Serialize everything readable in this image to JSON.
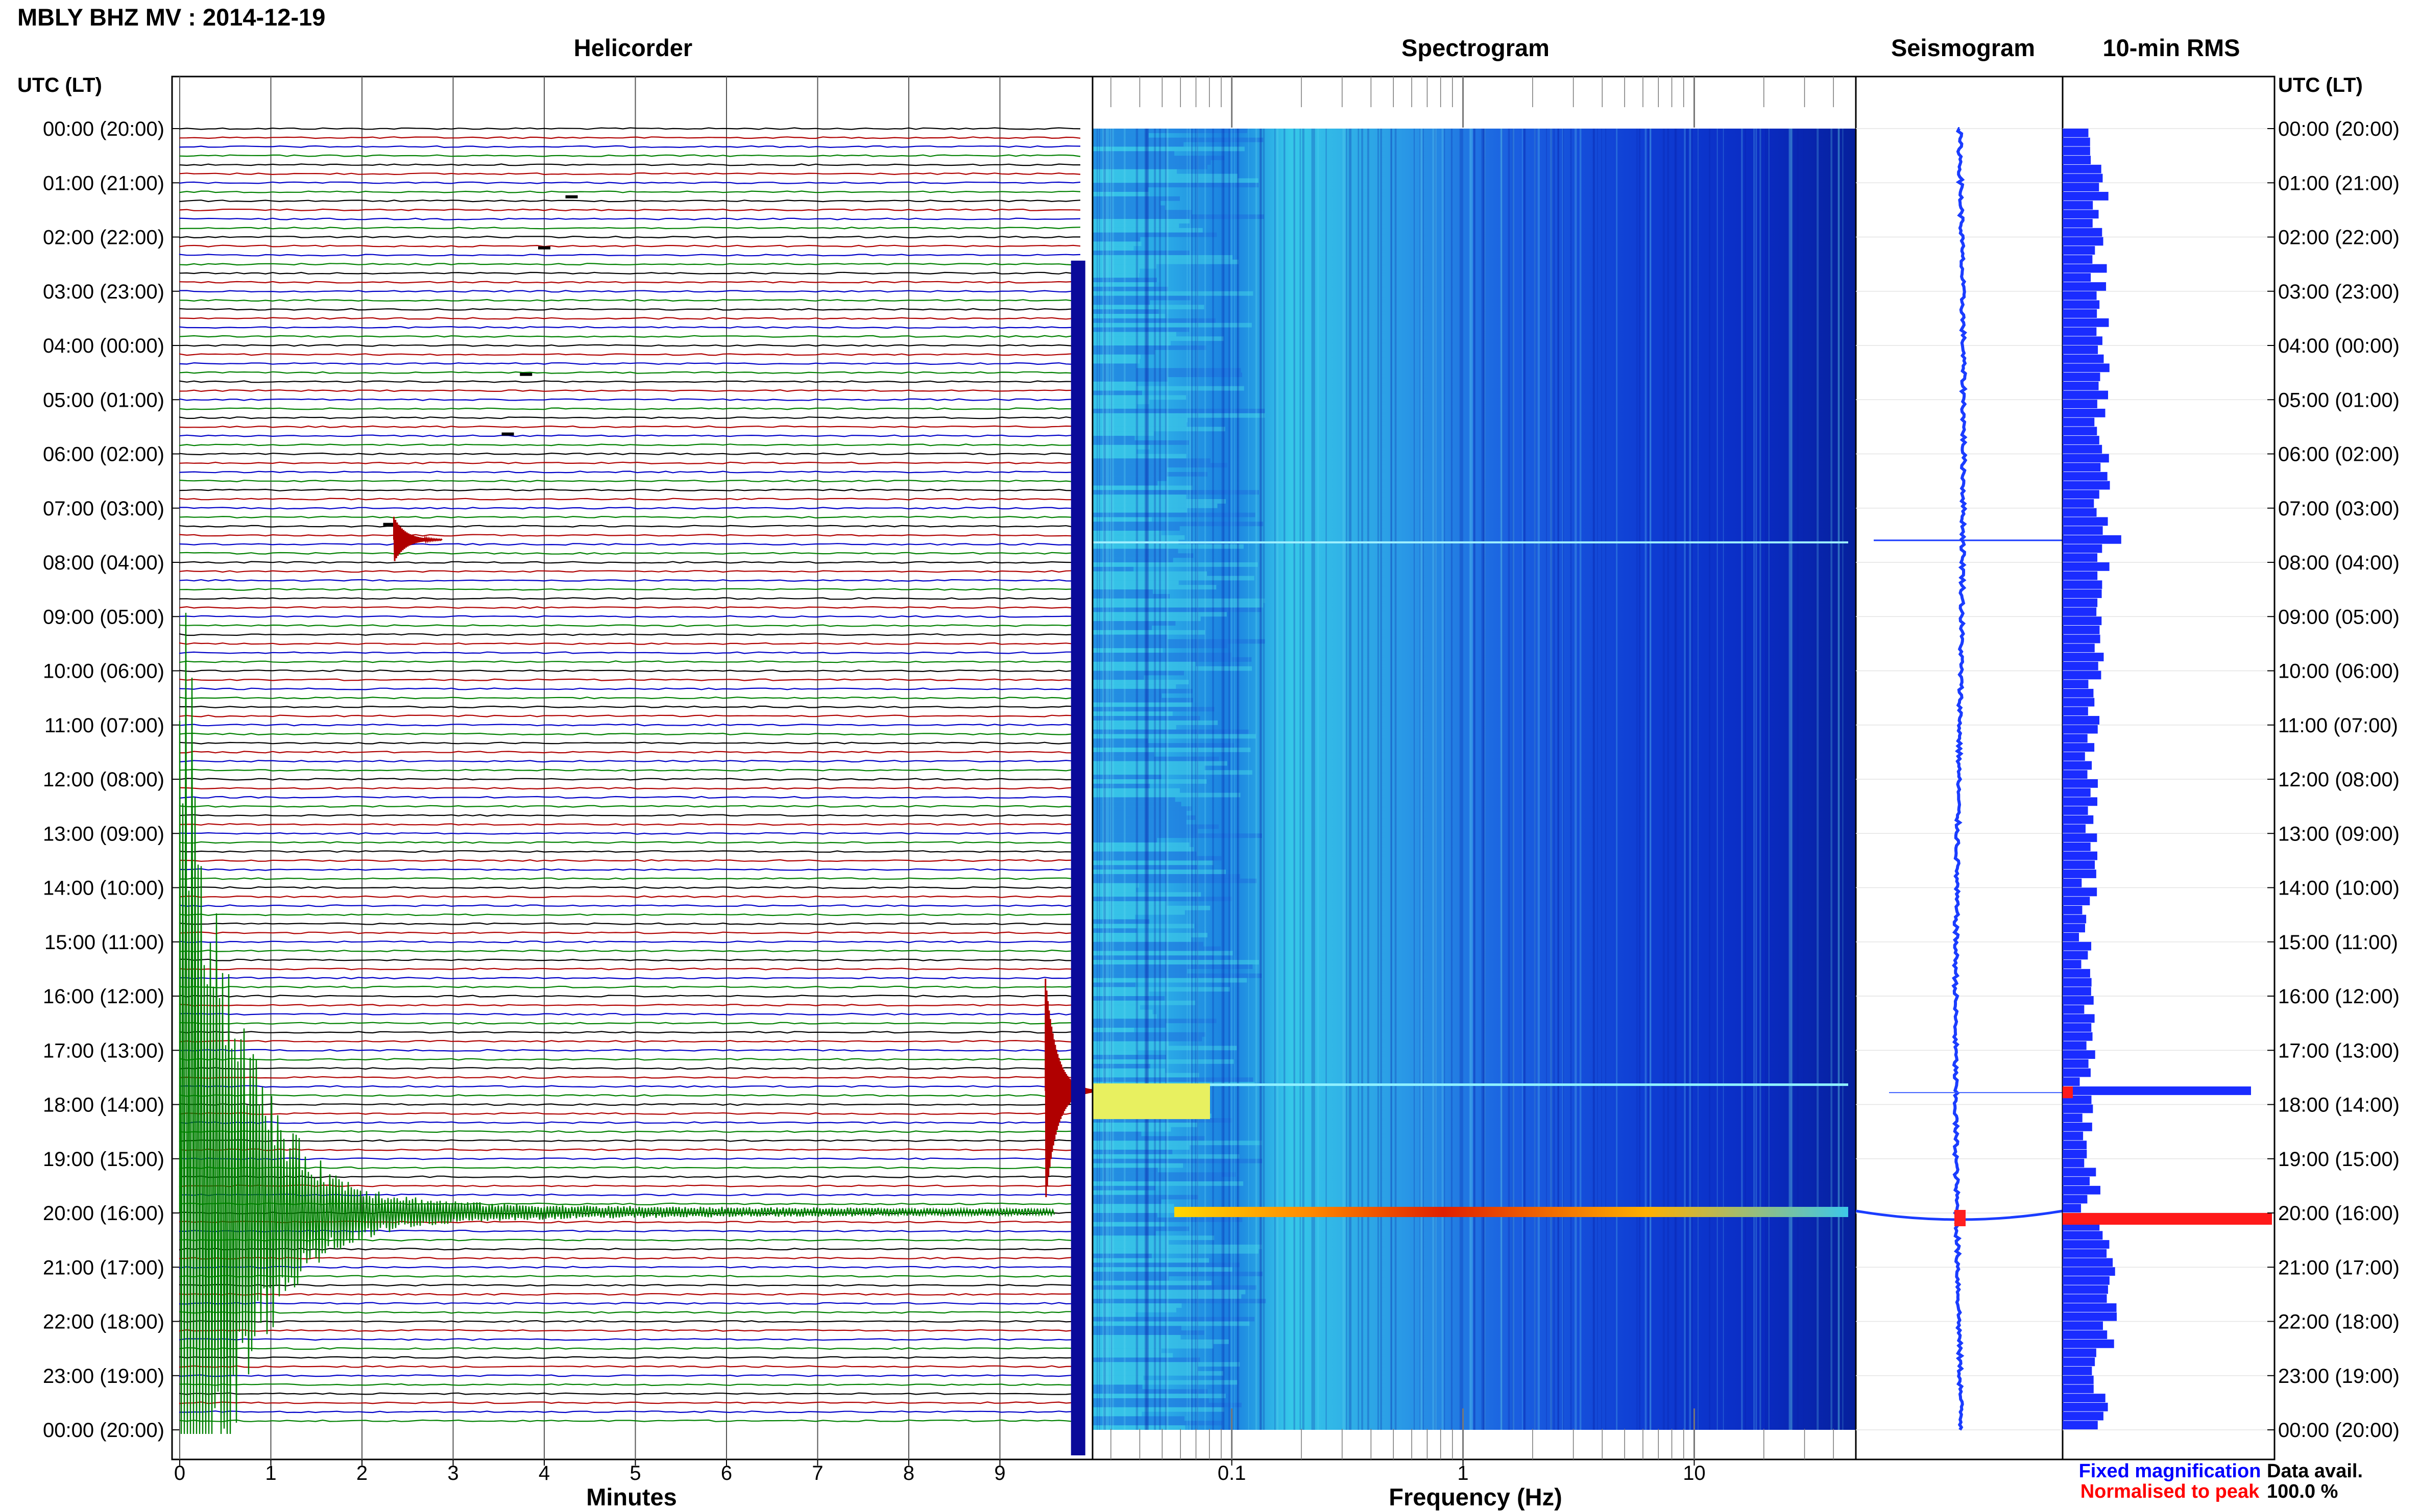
{
  "title": "MBLY BHZ MV : 2014-12-19",
  "time_axis_label": "UTC (LT)",
  "time_axis_label_right": "UTC (LT)",
  "panels": {
    "helicorder": "Helicorder",
    "spectrogram": "Spectrogram",
    "seismogram": "Seismogram",
    "rms": "10-min RMS"
  },
  "legend": {
    "fixed": "Fixed magnification",
    "normalised": "Normalised to peak",
    "avail_label": "Data avail.",
    "avail_value": "100.0 %"
  },
  "colors": {
    "trace_cycle": [
      "#000000",
      "#b00000",
      "#0000c8",
      "#008000"
    ],
    "fixed": "#0000ff",
    "normalised": "#ff0000"
  },
  "chart_data": [
    {
      "type": "line",
      "title": "Helicorder",
      "xlabel": "Minutes",
      "xlim": [
        0,
        10
      ],
      "x_ticks": [
        "0",
        "1",
        "2",
        "3",
        "4",
        "5",
        "6",
        "7",
        "8",
        "9"
      ],
      "rows": 144,
      "row_minutes": 10,
      "y_tick_labels": [
        "00:00 (20:00)",
        "01:00 (21:00)",
        "02:00 (22:00)",
        "03:00 (23:00)",
        "04:00 (00:00)",
        "05:00 (01:00)",
        "06:00 (02:00)",
        "07:00 (03:00)",
        "08:00 (04:00)",
        "09:00 (05:00)",
        "10:00 (06:00)",
        "11:00 (07:00)",
        "12:00 (08:00)",
        "13:00 (09:00)",
        "14:00 (10:00)",
        "15:00 (11:00)",
        "16:00 (12:00)",
        "17:00 (13:00)",
        "18:00 (14:00)",
        "19:00 (15:00)",
        "20:00 (16:00)",
        "21:00 (17:00)",
        "22:00 (18:00)",
        "23:00 (19:00)",
        "00:00 (20:00)"
      ],
      "events": [
        {
          "time": "07:30",
          "minute": 2.35,
          "color": "red"
        },
        {
          "time": "17:40",
          "minute": 9.5,
          "color": "red"
        },
        {
          "time": "20:00",
          "minute": 0.0,
          "color": "green",
          "note": "large event"
        }
      ]
    },
    {
      "type": "heatmap",
      "title": "Spectrogram",
      "xlabel": "Frequency (Hz)",
      "x_scale": "log",
      "xlim": [
        0.025,
        50
      ],
      "x_ticks": [
        "0.1",
        "1",
        "10"
      ],
      "events": [
        "07:30",
        "17:40",
        "20:00"
      ]
    },
    {
      "type": "line",
      "title": "Seismogram",
      "events": [
        "07:30",
        "17:40",
        "20:00"
      ]
    },
    {
      "type": "bar",
      "title": "10-min RMS",
      "orientation": "horizontal",
      "series": [
        {
          "name": "Fixed magnification",
          "color": "blue"
        },
        {
          "name": "Normalised to peak",
          "color": "red"
        }
      ],
      "peaks": [
        {
          "time": "07:30",
          "relative": 0.28
        },
        {
          "time": "17:40",
          "relative": 0.9
        },
        {
          "time": "20:00",
          "relative": 1.0
        }
      ]
    }
  ]
}
